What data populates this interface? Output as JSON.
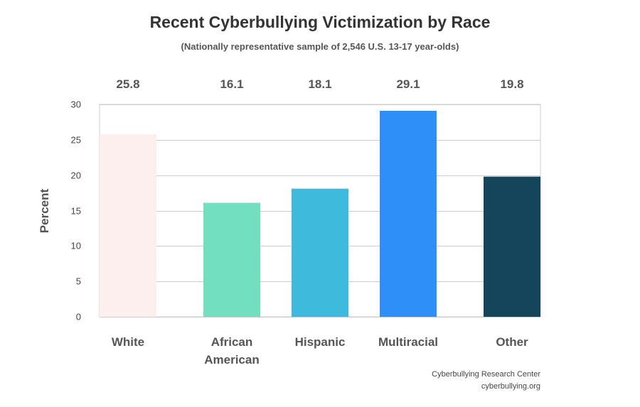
{
  "chart_data": {
    "type": "bar",
    "title": "Recent Cyberbullying Victimization by Race",
    "subtitle": "(Nationally representative sample of 2,546 U.S. 13-17 year-olds)",
    "categories": [
      [
        "White"
      ],
      [
        "African",
        "American"
      ],
      [
        "Hispanic"
      ],
      [
        "Multiracial"
      ],
      [
        "Other"
      ]
    ],
    "values": [
      25.8,
      16.1,
      18.1,
      29.1,
      19.8
    ],
    "value_labels": [
      "25.8",
      "16.1",
      "18.1",
      "29.1",
      "19.8"
    ],
    "colors": [
      "#fcefee",
      "#72dfc1",
      "#3dbadc",
      "#2e8ff8",
      "#15455b"
    ],
    "ylabel": "Percent",
    "xlabel": "",
    "ylim": [
      0,
      30
    ],
    "yticks": [
      0,
      5,
      10,
      15,
      20,
      25,
      30
    ],
    "grid": true,
    "legend": "none"
  },
  "credits": {
    "source": "Cyberbullying Research Center",
    "website": "cyberbullying.org"
  }
}
